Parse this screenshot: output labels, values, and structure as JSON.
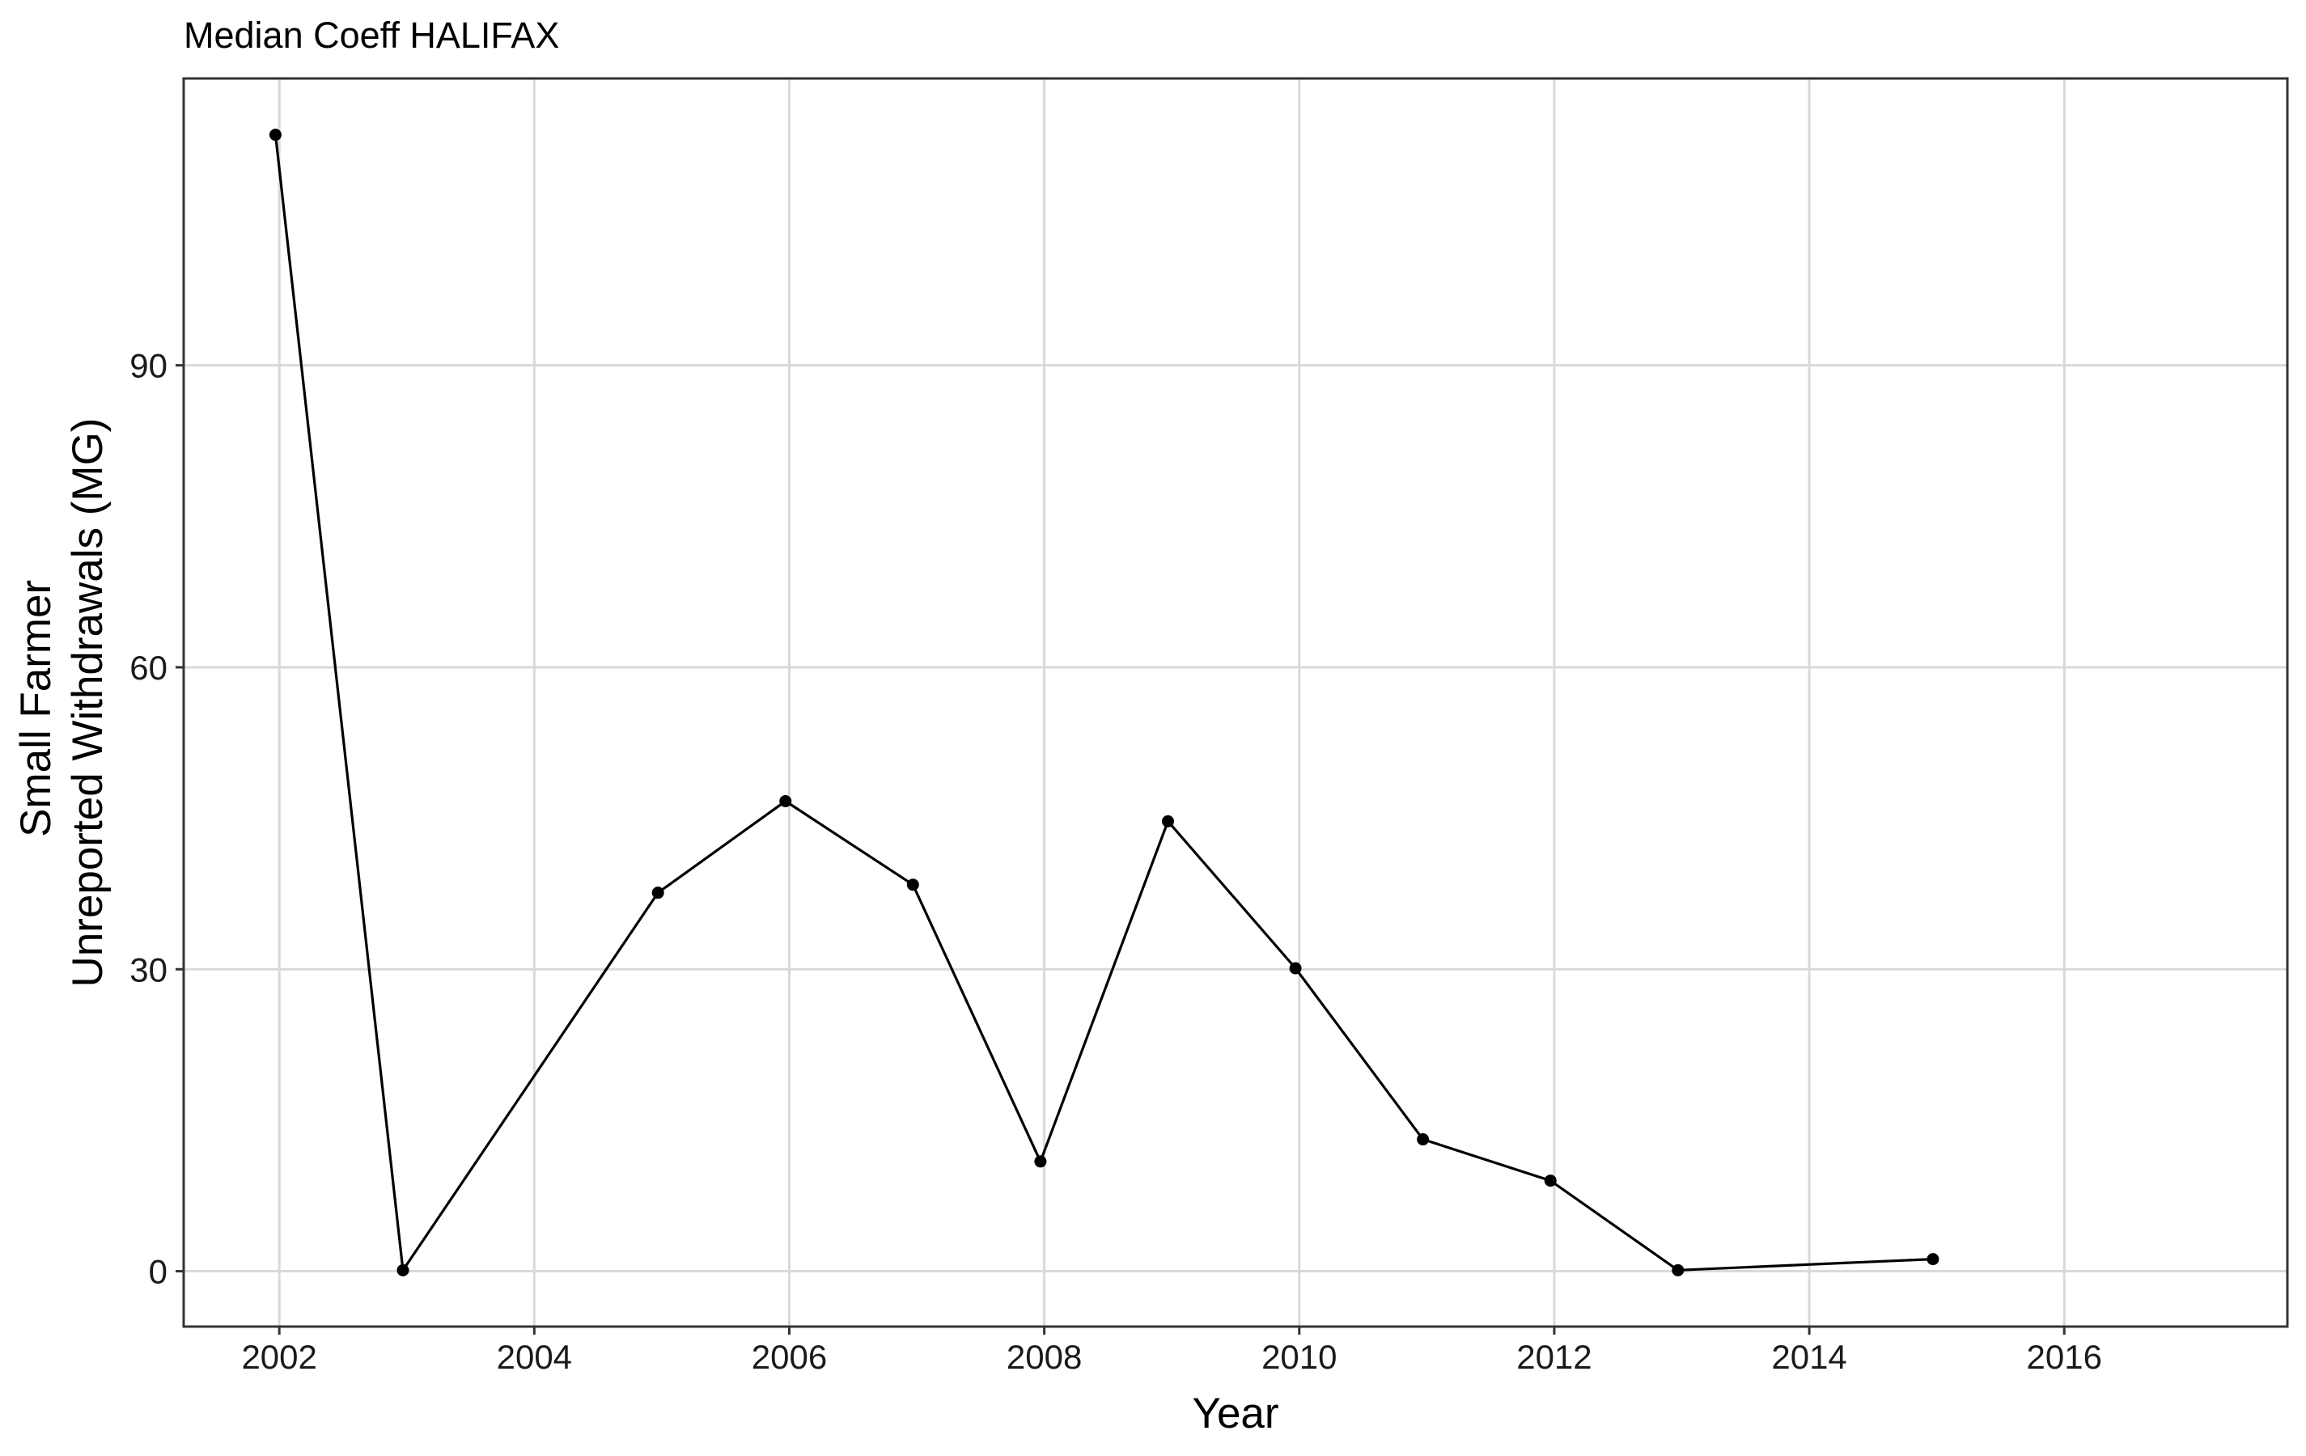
{
  "chart_data": {
    "type": "line",
    "title": "Median Coeff HALIFAX",
    "xlabel": "Year",
    "ylabel_lines": [
      "Small Farmer",
      "Unreported Withdrawals (MG)"
    ],
    "xlim": [
      2001.25,
      2017.75
    ],
    "ylim": [
      -5.5,
      118.5
    ],
    "x_ticks": [
      2002,
      2004,
      2006,
      2008,
      2010,
      2012,
      2014,
      2016
    ],
    "x_tick_labels": [
      "2002",
      "2004",
      "2006",
      "2008",
      "2010",
      "2012",
      "2014",
      "2016"
    ],
    "y_ticks": [
      0,
      30,
      60,
      90
    ],
    "y_tick_labels": [
      "0",
      "30",
      "60",
      "90"
    ],
    "grid": true,
    "series": [
      {
        "color": "#000000",
        "points": [
          {
            "x": 2001.97,
            "y": 112.9
          },
          {
            "x": 2002.97,
            "y": 0.1
          },
          {
            "x": 2004.97,
            "y": 37.6
          },
          {
            "x": 2005.97,
            "y": 46.7
          },
          {
            "x": 2006.97,
            "y": 38.4
          },
          {
            "x": 2007.97,
            "y": 10.9
          },
          {
            "x": 2008.97,
            "y": 44.7
          },
          {
            "x": 2009.97,
            "y": 30.1
          },
          {
            "x": 2010.97,
            "y": 13.1
          },
          {
            "x": 2011.97,
            "y": 9.0
          },
          {
            "x": 2012.97,
            "y": 0.1
          },
          {
            "x": 2014.97,
            "y": 1.2
          }
        ]
      }
    ],
    "colors": {
      "grid": "#d9d9d9",
      "panel_border": "#333333",
      "line": "#000000",
      "point": "#000000"
    }
  }
}
